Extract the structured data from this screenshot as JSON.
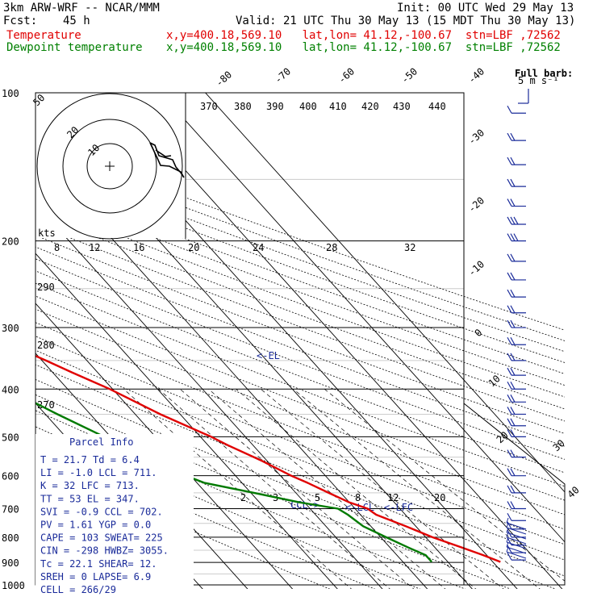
{
  "header": {
    "model": "3km ARW-WRF -- NCAR/MMM",
    "init": "Init: 00 UTC Wed 29 May 13",
    "fcst_label": "Fcst:",
    "fcst_value": "45 h",
    "valid": "Valid: 21 UTC Thu 30 May 13 (15 MDT Thu 30 May 13)",
    "temp_label": "Temperature",
    "temp_info": "x,y=400.18,569.10   lat,lon= 41.12,-100.67  stn=LBF ,72562",
    "dew_label": "Dewpoint temperature",
    "dew_info": "x,y=400.18,569.10   lat,lon= 41.12,-100.67  stn=LBF ,72562"
  },
  "colors": {
    "temperature": "#e00000",
    "dewpoint": "#007a00",
    "barbs": "#1a2b9a",
    "isotherm": "#000000"
  },
  "barb_legend": {
    "title": "Full barb:",
    "value": "5 m s⁻¹"
  },
  "hodograph": {
    "units": "kts",
    "ring_labels": [
      "20",
      "10"
    ]
  },
  "parcel_info": {
    "title": "Parcel Info",
    "rows": [
      "T  =    21.7  Td =   6.4",
      "LI =    -1.0  LCL =  711.",
      "K  =      32  LFC =  713.",
      "TT =      53  EL  =  347.",
      "SVI =   -0.9  CCL =  702.",
      "PV =    1.61  YGP =   0.0",
      "CAPE =   103  SWEAT=  225",
      "CIN =   -298  HWBZ= 3055.",
      "Tc  =   22.1  SHEAR=   12.",
      "SREH =     0  LAPSE=   6.9",
      "CELL = 266/29"
    ]
  },
  "level_markers": {
    "el": "<-EL",
    "lcl": "<-LCL",
    "lfc": "<-LFC",
    "ccl": "CCL->"
  },
  "chart_data": {
    "type": "line",
    "title": "",
    "xlabel": "",
    "ylabel": "",
    "pressure_ticks": [
      100,
      200,
      300,
      400,
      500,
      600,
      700,
      800,
      900,
      1000
    ],
    "isotherm_labels": [
      "-80",
      "-70",
      "-60",
      "-50",
      "-40",
      "-30",
      "-20",
      "-10",
      "0",
      "10",
      "20",
      "30",
      "40"
    ],
    "theta_labels_top": [
      "370",
      "380",
      "390",
      "400",
      "410",
      "420",
      "430",
      "440"
    ],
    "theta_labels_left": [
      "290",
      "280",
      "270"
    ],
    "mixing_ratio_labels_upper": [
      "8",
      "12",
      "16",
      "20",
      "24",
      "28",
      "32"
    ],
    "mixing_ratio_labels_lower": [
      "2",
      "3",
      "5",
      "8",
      "12",
      "20"
    ],
    "series": [
      {
        "name": "Temperature",
        "pressure": [
          898,
          870,
          840,
          800,
          760,
          720,
          700,
          680,
          650,
          620,
          600,
          560,
          520,
          500,
          450,
          400,
          370,
          350,
          330,
          310,
          290,
          270,
          250,
          225,
          200,
          180,
          160,
          140,
          130,
          120,
          110,
          100
        ],
        "temperature": [
          21.7,
          19.2,
          16.0,
          11.5,
          7.8,
          3.5,
          2.8,
          0.0,
          -2.7,
          -5.4,
          -7.6,
          -11.1,
          -15.6,
          -17.6,
          -24.4,
          -30.6,
          -35.7,
          -39.1,
          -43.0,
          -46.5,
          -50.0,
          -53.1,
          -55.0,
          -54.6,
          -55.5,
          -55.2,
          -57.1,
          -58.8,
          -59.4,
          -62.4,
          -63.0,
          -64.0
        ]
      },
      {
        "name": "Dewpoint temperature",
        "pressure": [
          898,
          870,
          840,
          800,
          760,
          720,
          700,
          680,
          650,
          620,
          600,
          580,
          560,
          520,
          500,
          450,
          400,
          370,
          350,
          330,
          310,
          300,
          290,
          270,
          250,
          230,
          220,
          200,
          180,
          160,
          150,
          140,
          130,
          120,
          110,
          100
        ],
        "temperature": [
          6.4,
          6.4,
          4.1,
          1.2,
          -1.7,
          -2.8,
          -3.8,
          -11.0,
          -19.3,
          -28.4,
          -31.0,
          -31.8,
          -34.6,
          -39.0,
          -41.4,
          -47.3,
          -53.3,
          -58.1,
          -62.3,
          -66.3,
          -68.9,
          -70.0,
          -74.8,
          -81.1,
          -86.3,
          -81.2,
          -79.1,
          -76.6,
          -74.5,
          -74.3,
          -74.7,
          -73.9,
          -73.8,
          -73.6,
          -73.4,
          -73.6
        ]
      }
    ],
    "wind_barbs": {
      "units": "m s-1",
      "levels_hpa": [
        110,
        125,
        140,
        155,
        170,
        185,
        200,
        220,
        240,
        260,
        280,
        300,
        325,
        350,
        375,
        400,
        425,
        450,
        475,
        500,
        550,
        600,
        650,
        700,
        740,
        770,
        800,
        830,
        860,
        890
      ],
      "speed_ms": [
        5,
        10,
        10,
        10,
        10,
        15,
        15,
        10,
        10,
        10,
        10,
        10,
        10,
        10,
        10,
        10,
        10,
        10,
        10,
        10,
        10,
        10,
        10,
        10,
        5,
        5,
        5,
        5,
        5,
        5
      ]
    }
  }
}
